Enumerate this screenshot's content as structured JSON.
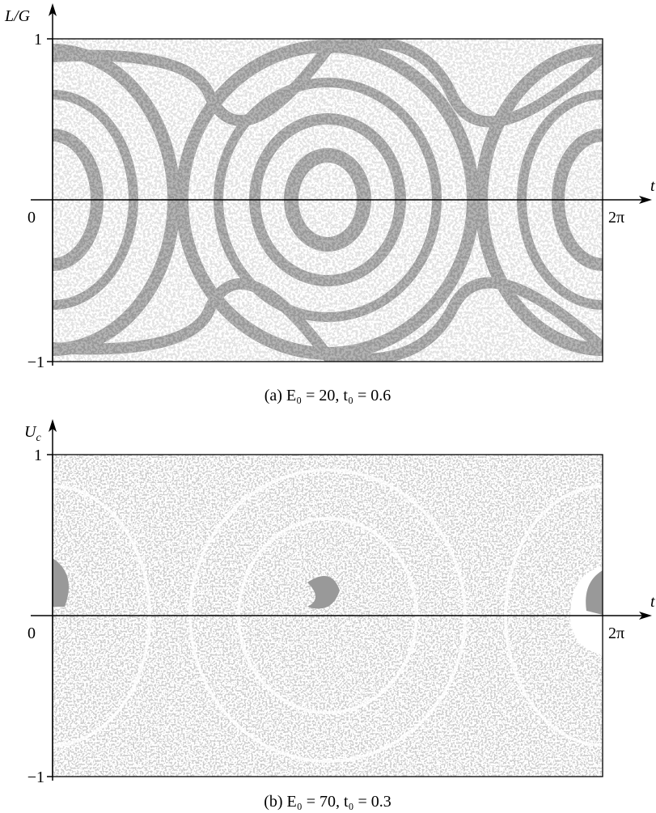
{
  "figure": {
    "panels": [
      {
        "y_label": {
          "main": "L/G",
          "sub": ""
        },
        "x_label": "t",
        "y_top": "1",
        "y_bottom": "−1",
        "origin": "0",
        "x_end": "2π",
        "caption": "(a) E₀ = 20, t₀ = 0.6"
      },
      {
        "y_label": {
          "main": "U",
          "sub": "c"
        },
        "x_label": "t",
        "y_top": "1",
        "y_bottom": "−1",
        "origin": "0",
        "x_end": "2π",
        "caption": "(b) E₀ = 70, t₀ = 0.3"
      }
    ]
  }
}
